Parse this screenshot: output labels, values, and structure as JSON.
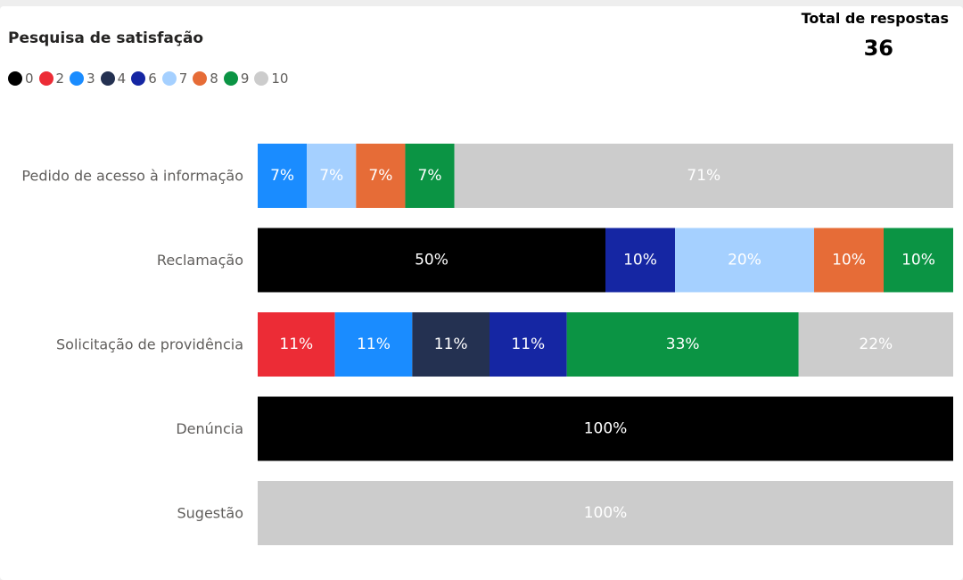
{
  "title": "Pesquisa de satisfação",
  "total": {
    "label": "Total de respostas",
    "value": "36"
  },
  "colors": {
    "0": "#000000",
    "2": "#ec2c36",
    "3": "#1a8cff",
    "4": "#243151",
    "6": "#1526a3",
    "7": "#a5d0ff",
    "8": "#e66c37",
    "9": "#0b9444",
    "10": "#cccccc"
  },
  "chart_data": {
    "type": "bar",
    "orientation": "horizontal",
    "stacked": "100%",
    "title": "Pesquisa de satisfação",
    "legend": {
      "position": "top-left",
      "entries": [
        "0",
        "2",
        "3",
        "4",
        "6",
        "7",
        "8",
        "9",
        "10"
      ]
    },
    "categories": [
      "Pedido de acesso à informação",
      "Reclamação",
      "Solicitação de providência",
      "Denúncia",
      "Sugestão"
    ],
    "series": [
      {
        "name": "0",
        "values": [
          0,
          50,
          0,
          100,
          0
        ],
        "labels": [
          "",
          "50%",
          "",
          "100%",
          ""
        ]
      },
      {
        "name": "2",
        "values": [
          0,
          0,
          11,
          0,
          0
        ],
        "labels": [
          "",
          "",
          "11%",
          "",
          ""
        ]
      },
      {
        "name": "3",
        "values": [
          7,
          0,
          11,
          0,
          0
        ],
        "labels": [
          "7%",
          "",
          "11%",
          "",
          ""
        ]
      },
      {
        "name": "4",
        "values": [
          0,
          0,
          11,
          0,
          0
        ],
        "labels": [
          "",
          "",
          "11%",
          "",
          ""
        ]
      },
      {
        "name": "6",
        "values": [
          0,
          10,
          11,
          0,
          0
        ],
        "labels": [
          "",
          "10%",
          "11%",
          "",
          ""
        ]
      },
      {
        "name": "7",
        "values": [
          7,
          20,
          0,
          0,
          0
        ],
        "labels": [
          "7%",
          "20%",
          "",
          "",
          ""
        ]
      },
      {
        "name": "8",
        "values": [
          7,
          10,
          0,
          0,
          0
        ],
        "labels": [
          "7%",
          "10%",
          "",
          "",
          ""
        ]
      },
      {
        "name": "9",
        "values": [
          7,
          10,
          33,
          0,
          0
        ],
        "labels": [
          "7%",
          "10%",
          "33%",
          "",
          ""
        ]
      },
      {
        "name": "10",
        "values": [
          71,
          0,
          22,
          0,
          100
        ],
        "labels": [
          "71%",
          "",
          "22%",
          "",
          "100%"
        ]
      }
    ],
    "xlim": [
      0,
      100
    ],
    "grid": false
  }
}
